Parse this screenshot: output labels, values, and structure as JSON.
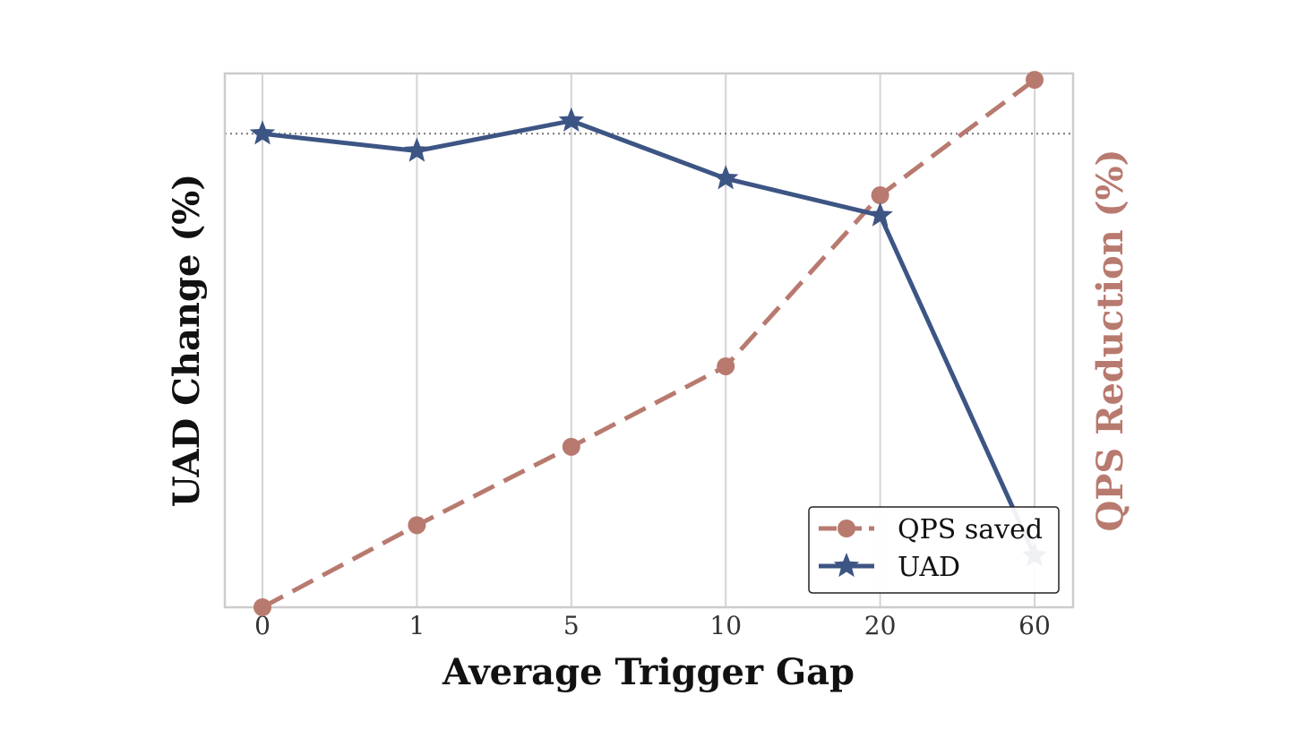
{
  "chart_data": {
    "type": "line",
    "categories": [
      "0",
      "1",
      "5",
      "10",
      "20",
      "60"
    ],
    "xlabel": "Average Trigger Gap",
    "ylabel_left": "UAD Change (%)",
    "ylabel_right": "QPS Reduction (%)",
    "left_axis": {
      "ylim": [
        -0.55,
        0.07
      ],
      "reference_line": 0,
      "tick_labels_shown": false
    },
    "right_axis": {
      "ylim": [
        0,
        100.8
      ],
      "tick_labels_shown": false
    },
    "grid": "vertical",
    "legend_placement": "lower-right",
    "series": [
      {
        "name": "QPS saved",
        "axis": "right",
        "values": [
          0,
          15.5,
          30.3,
          45.5,
          77.8,
          99.6
        ],
        "color": "#b87a6f",
        "style": "dashed",
        "marker": "circle"
      },
      {
        "name": "UAD",
        "axis": "left",
        "values": [
          0,
          -0.02,
          0.015,
          -0.052,
          -0.095,
          -0.49
        ],
        "color": "#3d5584",
        "style": "solid",
        "marker": "star"
      }
    ]
  }
}
